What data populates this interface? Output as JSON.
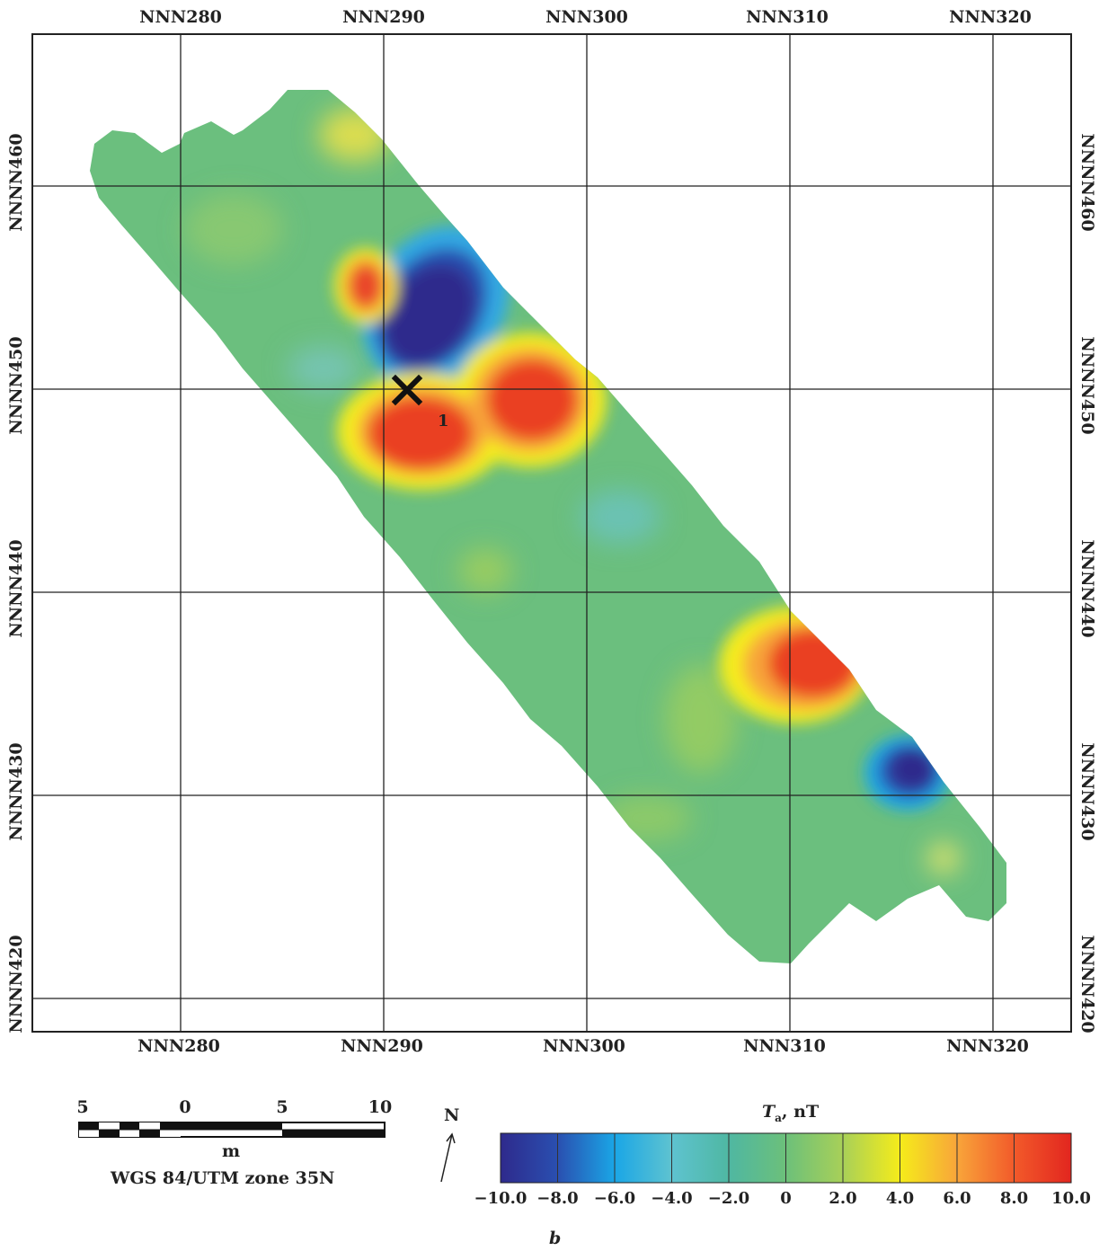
{
  "grid": {
    "x_labels": [
      "NNN280",
      "NNN290",
      "NNN300",
      "NNN310",
      "NNN320"
    ],
    "y_labels": [
      "NNNN460",
      "NNNN450",
      "NNNN440",
      "NNNN430",
      "NNNN420"
    ]
  },
  "marker": {
    "symbol": "×",
    "label": "1"
  },
  "scale_bar": {
    "ticks": [
      "5",
      "0",
      "5",
      "10"
    ],
    "unit": "m",
    "projection": "WGS 84/UTM zone 35N"
  },
  "north_arrow": {
    "label": "N",
    "arrow": "↗"
  },
  "colorbar": {
    "title_symbol": "T",
    "title_subscript": "a",
    "title_unit": ", nT",
    "ticks": [
      "−10.0",
      "−8.0",
      "−6.0",
      "−4.0",
      "−2.0",
      "0",
      "2.0",
      "4.0",
      "6.0",
      "8.0",
      "10.0"
    ],
    "range": [
      -10,
      10
    ],
    "colors": [
      "#2e2a8c",
      "#2a4fb0",
      "#1aa6e6",
      "#5ec3d0",
      "#4fb7a2",
      "#6cc07a",
      "#a8d058",
      "#f5ec1a",
      "#f8a53a",
      "#f25a2a",
      "#e2261f"
    ]
  },
  "panel_label": "b",
  "colors": {
    "background_field": "#6bbf7e",
    "grid_line": "#222222"
  }
}
